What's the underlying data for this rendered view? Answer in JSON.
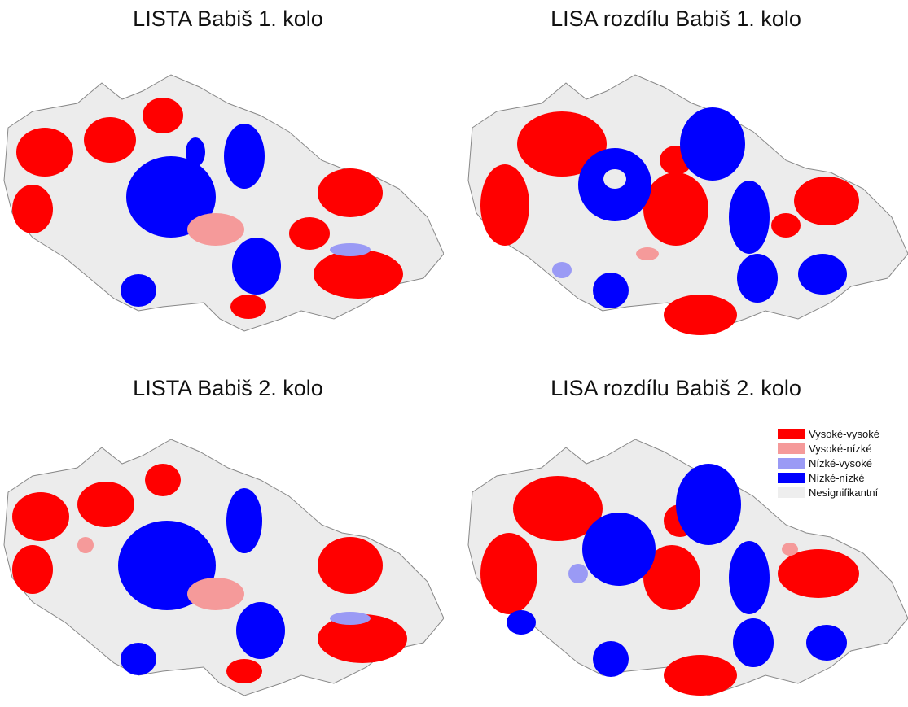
{
  "panels": [
    {
      "title": "LISTA Babiš 1. kolo"
    },
    {
      "title": "LISA rozdílu Babiš 1. kolo"
    },
    {
      "title": "LISTA Babiš 2. kolo"
    },
    {
      "title": "LISA rozdílu Babiš 2. kolo"
    }
  ],
  "legend": {
    "items": [
      {
        "label": "Vysoké-vysoké",
        "color": "#ff0000"
      },
      {
        "label": "Vysoké-nízké",
        "color": "#f59a9a"
      },
      {
        "label": "Nízké-vysoké",
        "color": "#9a9af5"
      },
      {
        "label": "Nízké-nízké",
        "color": "#0000ff"
      },
      {
        "label": "Nesignifikantní",
        "color": "#eeeeee"
      }
    ]
  }
}
